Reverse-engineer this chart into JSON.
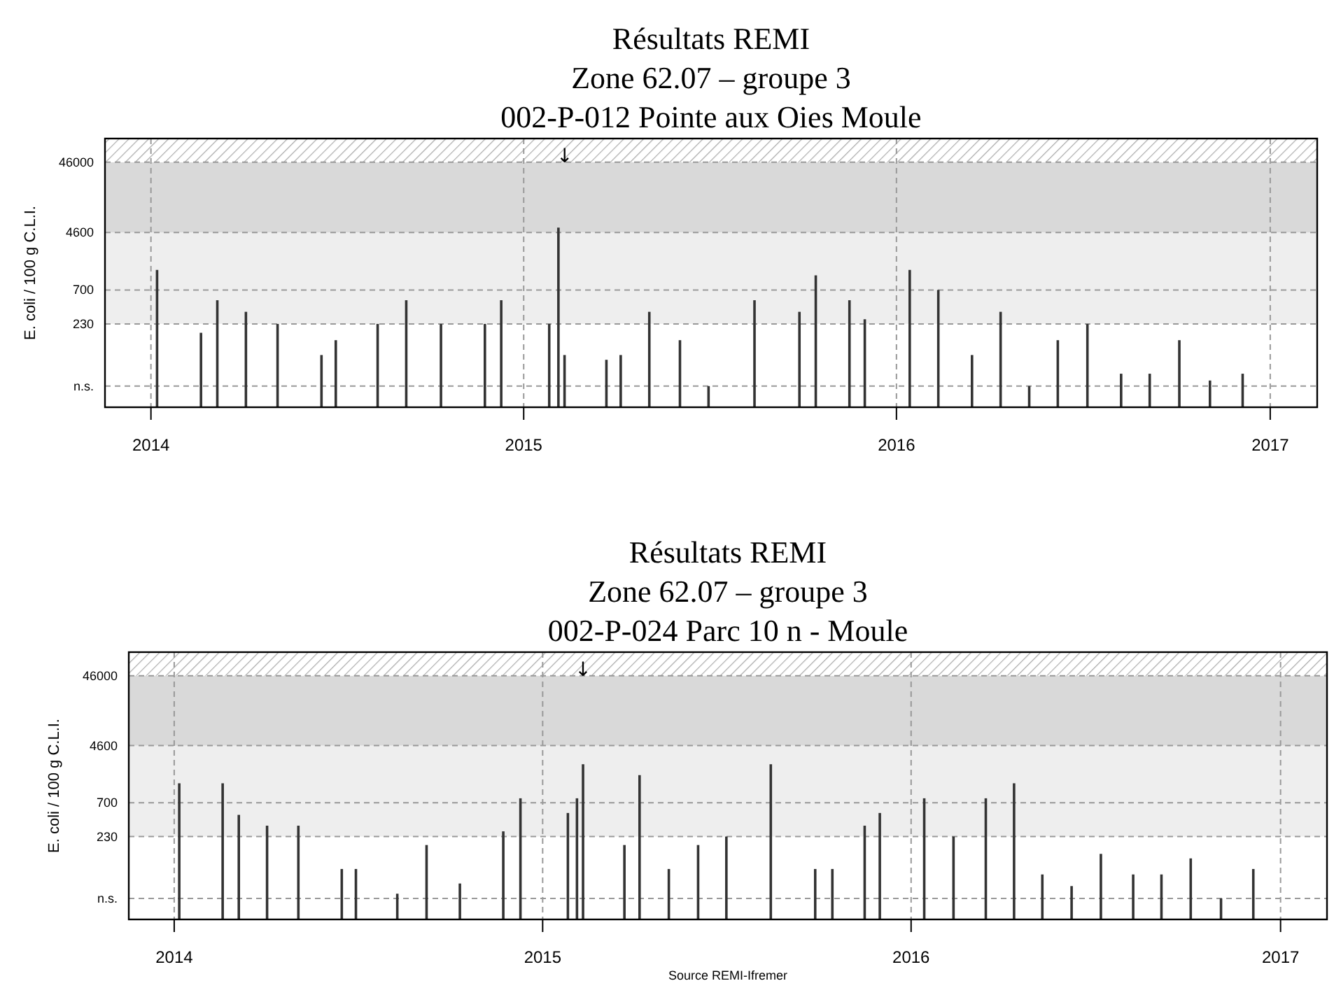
{
  "chart_data": [
    {
      "type": "bar",
      "title": "Résultats REMI",
      "subtitle": "Zone 62.07 – groupe 3\n002-P-012 Pointe aux Oies  Moule",
      "ylabel": "E. coli  / 100 g C.L.I.",
      "log": "y",
      "grid": true,
      "color": "#333333",
      "x": [
        "2014-01-07",
        "2014-02-19",
        "2014-03-07",
        "2014-04-04",
        "2014-05-05",
        "2014-06-17",
        "2014-07-01",
        "2014-08-11",
        "2014-09-08",
        "2014-10-12",
        "2014-11-24",
        "2014-12-10",
        "2015-01-26",
        "2015-02-04",
        "2015-02-10",
        "2015-03-23",
        "2015-04-06",
        "2015-05-04",
        "2015-06-03",
        "2015-07-01",
        "2015-08-15",
        "2015-09-28",
        "2015-10-14",
        "2015-11-16",
        "2015-12-01",
        "2016-01-14",
        "2016-02-11",
        "2016-03-15",
        "2016-04-12",
        "2016-05-10",
        "2016-06-07",
        "2016-07-06",
        "2016-08-08",
        "2016-09-05",
        "2016-10-04",
        "2016-11-03",
        "2016-12-05"
      ],
      "values": [
        1350,
        172,
        500,
        342,
        230,
        83,
        135,
        230,
        500,
        230,
        230,
        500,
        230,
        5400,
        83,
        71,
        83,
        342,
        135,
        30,
        500,
        342,
        1130,
        500,
        268,
        1350,
        700,
        83,
        342,
        30,
        135,
        230,
        45,
        45,
        135,
        36,
        45
      ],
      "xlim": [
        "2013-11-17",
        "2017-02-16"
      ],
      "xticks": [
        "2014",
        "2015",
        "2016",
        "2017"
      ],
      "ylim": [
        15,
        100000
      ],
      "yticks": [
        {
          "value": 30,
          "label": "n.s."
        },
        230,
        700,
        4600,
        46000
      ],
      "bands": [
        {
          "axis": "y",
          "from": 230,
          "to": 4600,
          "color": "#eeeeee"
        },
        {
          "axis": "y",
          "from": 4600,
          "to": 46000,
          "color": "#d9d9d9"
        },
        {
          "axis": "y",
          "from": 46000,
          "to": 100000,
          "color": "#aaaaaa"
        }
      ],
      "annotations": [
        {
          "text": "↓",
          "x": "2015-02-10",
          "y": 46000
        }
      ]
    },
    {
      "type": "bar",
      "title": "Résultats REMI",
      "subtitle": "Zone 62.07 – groupe 3\n002-P-024 Parc 10 n - Moule",
      "ylabel": "E. coli  / 100 g C.L.I.",
      "log": "y",
      "grid": true,
      "color": "#333333",
      "x": [
        "2014-01-06",
        "2014-02-18",
        "2014-03-06",
        "2014-04-03",
        "2014-05-04",
        "2014-06-16",
        "2014-06-30",
        "2014-08-10",
        "2014-09-08",
        "2014-10-11",
        "2014-11-23",
        "2014-12-10",
        "2015-01-26",
        "2015-02-04",
        "2015-02-10",
        "2015-03-23",
        "2015-04-07",
        "2015-05-06",
        "2015-06-04",
        "2015-07-02",
        "2015-08-15",
        "2015-09-28",
        "2015-10-15",
        "2015-11-16",
        "2015-12-01",
        "2016-01-14",
        "2016-02-12",
        "2016-03-15",
        "2016-04-12",
        "2016-05-10",
        "2016-06-08",
        "2016-07-07",
        "2016-08-08",
        "2016-09-05",
        "2016-10-04",
        "2016-11-03",
        "2016-12-05"
      ],
      "values": [
        1330,
        1330,
        470,
        329,
        329,
        79,
        79,
        35,
        174,
        49,
        273,
        811,
        500,
        811,
        2490,
        174,
        1740,
        79,
        174,
        230,
        2490,
        79,
        79,
        329,
        500,
        811,
        230,
        811,
        1330,
        66,
        45,
        130,
        66,
        66,
        112,
        30,
        79
      ],
      "xlim": [
        "2013-11-17",
        "2017-02-16"
      ],
      "xticks": [
        "2014",
        "2015",
        "2016",
        "2017"
      ],
      "ylim": [
        15,
        100000
      ],
      "yticks": [
        {
          "value": 30,
          "label": "n.s."
        },
        230,
        700,
        4600,
        46000
      ],
      "bands": [
        {
          "axis": "y",
          "from": 230,
          "to": 4600,
          "color": "#eeeeee"
        },
        {
          "axis": "y",
          "from": 4600,
          "to": 46000,
          "color": "#d9d9d9"
        },
        {
          "axis": "y",
          "from": 46000,
          "to": 100000,
          "color": "#aaaaaa"
        }
      ],
      "annotations": [
        {
          "text": "↓",
          "x": "2015-02-10",
          "y": 46000
        },
        "Source REMI-Ifremer"
      ]
    }
  ]
}
